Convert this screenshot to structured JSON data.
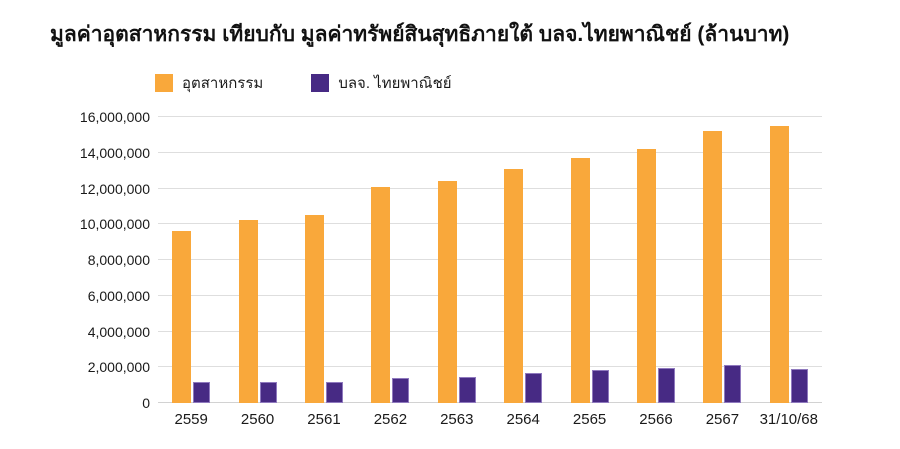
{
  "title": "มูลค่าอุตสาหกรรม เทียบกับ มูลค่าทรัพย์สินสุทธิภายใต้ บลจ.ไทยพาณิชย์ (ล้านบาท)",
  "colors": {
    "industry_orange": "#F9A83B",
    "scbam_purple": "#472A84",
    "scbam_purple_border": "#8F79BE",
    "gridline": "#dedede",
    "text": "#1a1a1a"
  },
  "legend": {
    "items": [
      {
        "label": "อุตสาหกรรม",
        "color": "#F9A83B"
      },
      {
        "label": "บลจ. ไทยพาณิชย์",
        "color": "#472A84"
      }
    ]
  },
  "chart_data": {
    "type": "bar",
    "title": "มูลค่าอุตสาหกรรม เทียบกับ มูลค่าทรัพย์สินสุทธิภายใต้ บลจ.ไทยพาณิชย์ (ล้านบาท)",
    "unit": "ล้านบาท",
    "categories": [
      "2559",
      "2560",
      "2561",
      "2562",
      "2563",
      "2564",
      "2565",
      "2566",
      "2567",
      "31/10/68"
    ],
    "series": [
      {
        "name": "อุตสาหกรรม",
        "color": "#F9A83B",
        "values": [
          9650000,
          10250000,
          10500000,
          12100000,
          12400000,
          13100000,
          13700000,
          14200000,
          15200000,
          15500000
        ]
      },
      {
        "name": "บลจ. ไทยพาณิชย์",
        "color": "#472A84",
        "values": [
          1150000,
          1180000,
          1150000,
          1400000,
          1450000,
          1700000,
          1850000,
          1950000,
          2150000,
          1900000
        ]
      }
    ],
    "xlabel": "",
    "ylabel": "",
    "ylim": [
      0,
      16000000
    ],
    "y_tick_step": 2000000,
    "y_ticks": [
      "0",
      "2,000,000",
      "4,000,000",
      "6,000,000",
      "8,000,000",
      "10,000,000",
      "12,000,000",
      "14,000,000",
      "16,000,000"
    ],
    "grid": true,
    "legend_position": "top-left"
  }
}
